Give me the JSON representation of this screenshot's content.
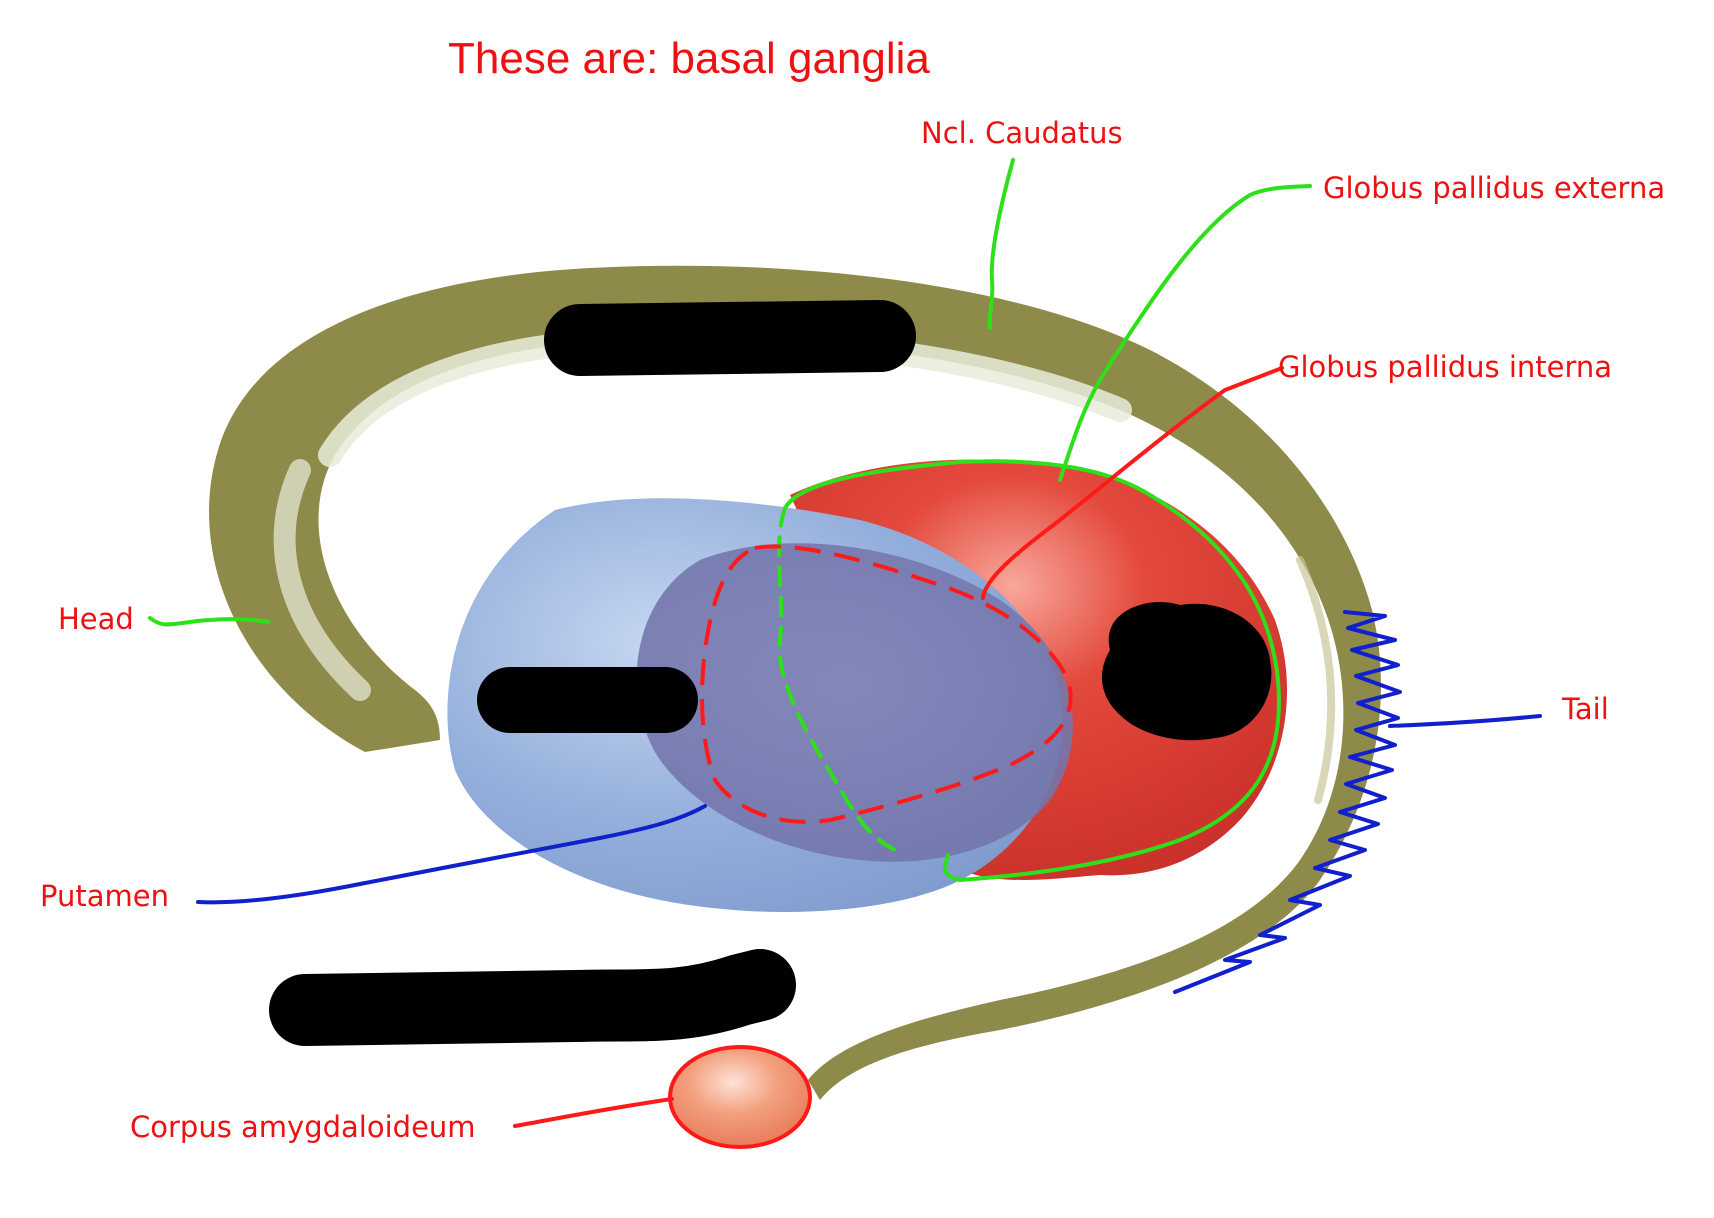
{
  "title": "These are: basal ganglia",
  "labels": {
    "caudatus": "Ncl. Caudatus",
    "gp_externa": "Globus pallidus externa",
    "gp_interna": "Globus pallidus interna",
    "head": "Head",
    "tail": "Tail",
    "putamen": "Putamen",
    "amygdala": "Corpus amygdaloideum"
  },
  "colors": {
    "label_text": "#ee1111",
    "caudate": "#8e8a4a",
    "putamen": "#93aedb",
    "globus_pallidus": "#e3493c",
    "amygdala": "#f08f6e",
    "annotation_green": "#2ee01a",
    "annotation_red": "#ff1a1a",
    "annotation_blue": "#1020cc",
    "redaction": "#000000"
  }
}
